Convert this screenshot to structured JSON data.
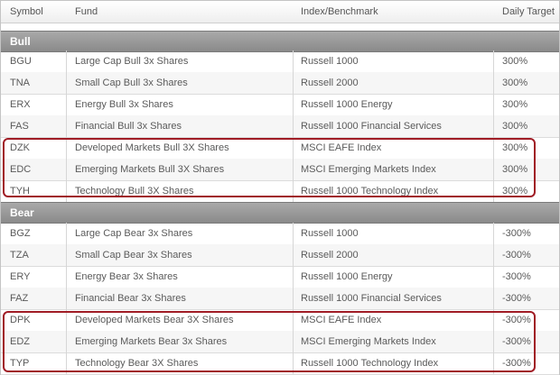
{
  "columns": [
    "Symbol",
    "Fund",
    "Index/Benchmark",
    "Daily Target"
  ],
  "sections": [
    {
      "label": "Bull",
      "rows": [
        {
          "symbol": "BGU",
          "fund": "Large Cap Bull 3x Shares",
          "index": "Russell 1000",
          "target": "300%"
        },
        {
          "symbol": "TNA",
          "fund": "Small Cap Bull 3x Shares",
          "index": "Russell 2000",
          "target": "300%"
        },
        {
          "symbol": "ERX",
          "fund": "Energy Bull 3x Shares",
          "index": "Russell 1000 Energy",
          "target": "300%"
        },
        {
          "symbol": "FAS",
          "fund": "Financial Bull 3x Shares",
          "index": "Russell 1000 Financial Services",
          "target": "300%"
        },
        {
          "symbol": "DZK",
          "fund": "Developed Markets Bull 3X Shares",
          "index": "MSCI EAFE Index",
          "target": "300%"
        },
        {
          "symbol": "EDC",
          "fund": "Emerging Markets Bull 3X Shares",
          "index": "MSCI Emerging Markets Index",
          "target": "300%"
        },
        {
          "symbol": "TYH",
          "fund": "Technology Bull 3X Shares",
          "index": "Russell 1000 Technology Index",
          "target": "300%"
        }
      ]
    },
    {
      "label": "Bear",
      "rows": [
        {
          "symbol": "BGZ",
          "fund": "Large Cap Bear 3x Shares",
          "index": "Russell 1000",
          "target": "-300%"
        },
        {
          "symbol": "TZA",
          "fund": "Small Cap Bear 3x Shares",
          "index": "Russell 2000",
          "target": "-300%"
        },
        {
          "symbol": "ERY",
          "fund": "Energy Bear 3x Shares",
          "index": "Russell 1000 Energy",
          "target": "-300%"
        },
        {
          "symbol": "FAZ",
          "fund": "Financial Bear 3x Shares",
          "index": "Russell 1000 Financial Services",
          "target": "-300%"
        },
        {
          "symbol": "DPK",
          "fund": "Developed Markets Bear 3X Shares",
          "index": "MSCI EAFE Index",
          "target": "-300%"
        },
        {
          "symbol": "EDZ",
          "fund": "Emerging Markets Bear 3x Shares",
          "index": "MSCI Emerging Markets Index",
          "target": "-300%"
        },
        {
          "symbol": "TYP",
          "fund": "Technology Bear 3X Shares",
          "index": "Russell 1000 Technology Index",
          "target": "-300%"
        }
      ]
    }
  ],
  "colors": {
    "highlight_border": "#a01c25",
    "section_header": "#999999"
  }
}
